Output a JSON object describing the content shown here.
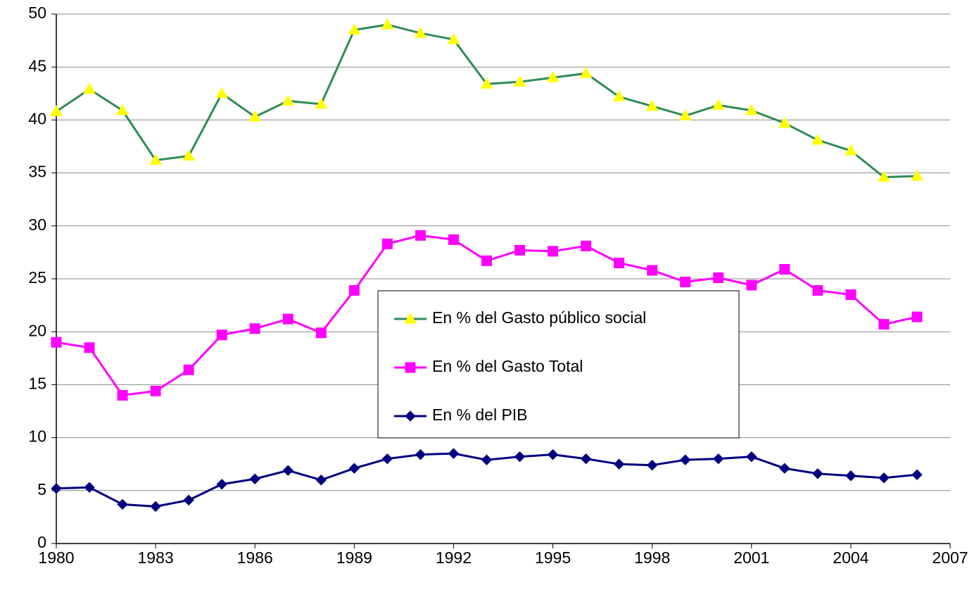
{
  "chart_data": {
    "type": "line",
    "x": [
      1980,
      1981,
      1982,
      1983,
      1984,
      1985,
      1986,
      1987,
      1988,
      1989,
      1990,
      1991,
      1992,
      1993,
      1994,
      1995,
      1996,
      1997,
      1998,
      1999,
      2000,
      2001,
      2002,
      2003,
      2004,
      2005,
      2006
    ],
    "series": [
      {
        "name": "En % del Gasto público social",
        "color": "#2e8b57",
        "marker": "triangle",
        "marker_color": "#ffff00",
        "values": [
          40.8,
          42.9,
          40.9,
          36.2,
          36.6,
          42.5,
          40.3,
          41.8,
          41.5,
          48.5,
          49.0,
          48.2,
          47.6,
          43.4,
          43.6,
          44.0,
          44.4,
          42.2,
          41.3,
          40.4,
          41.4,
          40.9,
          39.7,
          38.1,
          37.1,
          34.6,
          34.7
        ]
      },
      {
        "name": "En % del Gasto Total",
        "color": "#ff00ff",
        "marker": "square",
        "marker_color": "#ff00ff",
        "values": [
          19.0,
          18.5,
          14.0,
          14.4,
          16.4,
          19.7,
          20.3,
          21.2,
          19.9,
          23.9,
          28.3,
          29.1,
          28.7,
          26.7,
          27.7,
          27.6,
          28.1,
          26.5,
          25.8,
          24.7,
          25.1,
          24.4,
          25.9,
          23.9,
          23.5,
          20.7,
          21.4
        ]
      },
      {
        "name": "En % del PIB",
        "color": "#000080",
        "marker": "diamond",
        "marker_color": "#000080",
        "values": [
          5.2,
          5.3,
          3.7,
          3.5,
          4.1,
          5.6,
          6.1,
          6.9,
          6.0,
          7.1,
          8.0,
          8.4,
          8.5,
          7.9,
          8.2,
          8.4,
          8.0,
          7.5,
          7.4,
          7.9,
          8.0,
          8.2,
          7.1,
          6.6,
          6.4,
          6.2,
          6.5
        ]
      }
    ],
    "xlim": [
      1980,
      2007
    ],
    "xticks": [
      1980,
      1983,
      1986,
      1989,
      1992,
      1995,
      1998,
      2001,
      2004,
      2007
    ],
    "ylim": [
      0,
      50
    ],
    "yticks": [
      0,
      5,
      10,
      15,
      20,
      25,
      30,
      35,
      40,
      45,
      50
    ],
    "grid": true,
    "legend": "center"
  }
}
